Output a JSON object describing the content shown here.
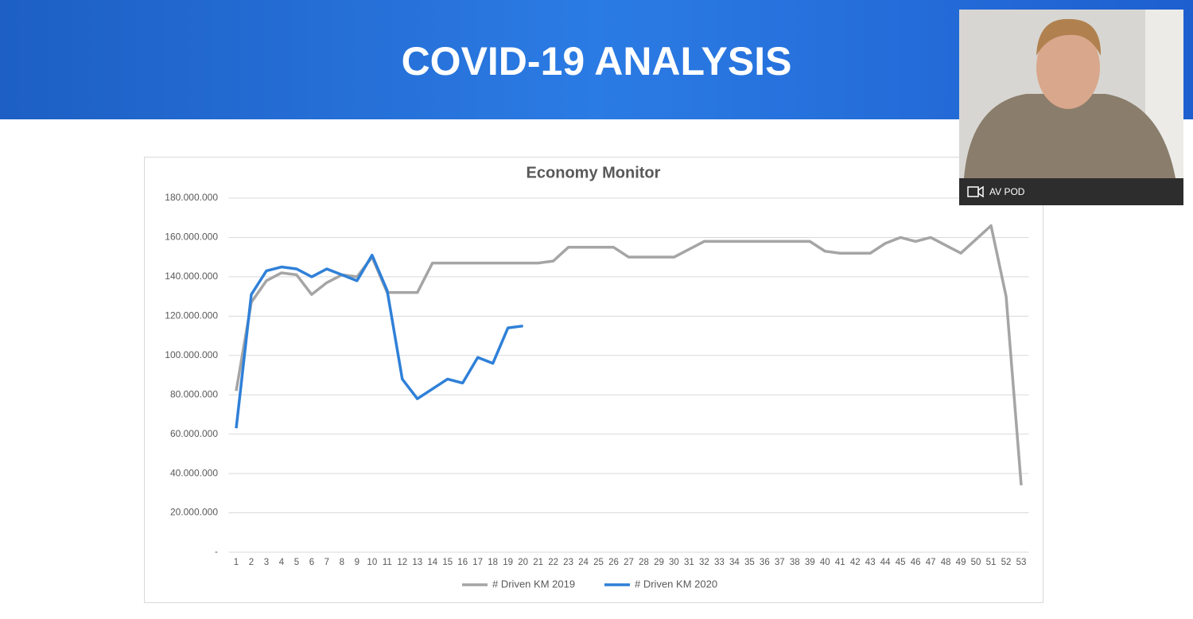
{
  "slide": {
    "title": "COVID-19 ANALYSIS"
  },
  "video_tile": {
    "label": "AV POD"
  },
  "chart_data": {
    "type": "line",
    "title": "Economy Monitor",
    "categories": [
      "1",
      "2",
      "3",
      "4",
      "5",
      "6",
      "7",
      "8",
      "9",
      "10",
      "11",
      "12",
      "13",
      "14",
      "15",
      "16",
      "17",
      "18",
      "19",
      "20",
      "21",
      "22",
      "23",
      "24",
      "25",
      "26",
      "27",
      "28",
      "29",
      "30",
      "31",
      "32",
      "33",
      "34",
      "35",
      "36",
      "37",
      "38",
      "39",
      "40",
      "41",
      "42",
      "43",
      "44",
      "45",
      "46",
      "47",
      "48",
      "49",
      "50",
      "51",
      "52",
      "53"
    ],
    "series": [
      {
        "name": "# Driven KM 2019",
        "color": "#a5a5a5",
        "values": [
          82000000,
          127000000,
          138000000,
          142000000,
          141000000,
          131000000,
          137000000,
          141000000,
          140000000,
          150000000,
          132000000,
          132000000,
          132000000,
          147000000,
          147000000,
          147000000,
          147000000,
          147000000,
          147000000,
          147000000,
          147000000,
          148000000,
          155000000,
          155000000,
          155000000,
          155000000,
          150000000,
          150000000,
          150000000,
          150000000,
          154000000,
          158000000,
          158000000,
          158000000,
          158000000,
          158000000,
          158000000,
          158000000,
          158000000,
          153000000,
          152000000,
          152000000,
          152000000,
          157000000,
          160000000,
          158000000,
          160000000,
          156000000,
          152000000,
          159000000,
          166000000,
          130000000,
          34000000
        ]
      },
      {
        "name": "# Driven KM 2020",
        "color": "#2f80d8",
        "values": [
          63000000,
          131000000,
          143000000,
          145000000,
          144000000,
          140000000,
          144000000,
          141000000,
          138000000,
          151000000,
          133000000,
          88000000,
          78000000,
          83000000,
          88000000,
          86000000,
          99000000,
          96000000,
          114000000,
          115000000,
          null,
          null,
          null,
          null,
          null,
          null,
          null,
          null,
          null,
          null,
          null,
          null,
          null,
          null,
          null,
          null,
          null,
          null,
          null,
          null,
          null,
          null,
          null,
          null,
          null,
          null,
          null,
          null,
          null,
          null,
          null,
          null,
          null
        ]
      }
    ],
    "ylim": [
      0,
      180000000
    ],
    "yticks": [
      {
        "value": 0,
        "label": "-"
      },
      {
        "value": 20000000,
        "label": "20.000.000"
      },
      {
        "value": 40000000,
        "label": "40.000.000"
      },
      {
        "value": 60000000,
        "label": "60.000.000"
      },
      {
        "value": 80000000,
        "label": "80.000.000"
      },
      {
        "value": 100000000,
        "label": "100.000.000"
      },
      {
        "value": 120000000,
        "label": "120.000.000"
      },
      {
        "value": 140000000,
        "label": "140.000.000"
      },
      {
        "value": 160000000,
        "label": "160.000.000"
      },
      {
        "value": 180000000,
        "label": "180.000.000"
      }
    ],
    "grid": true,
    "legend": "bottom"
  }
}
